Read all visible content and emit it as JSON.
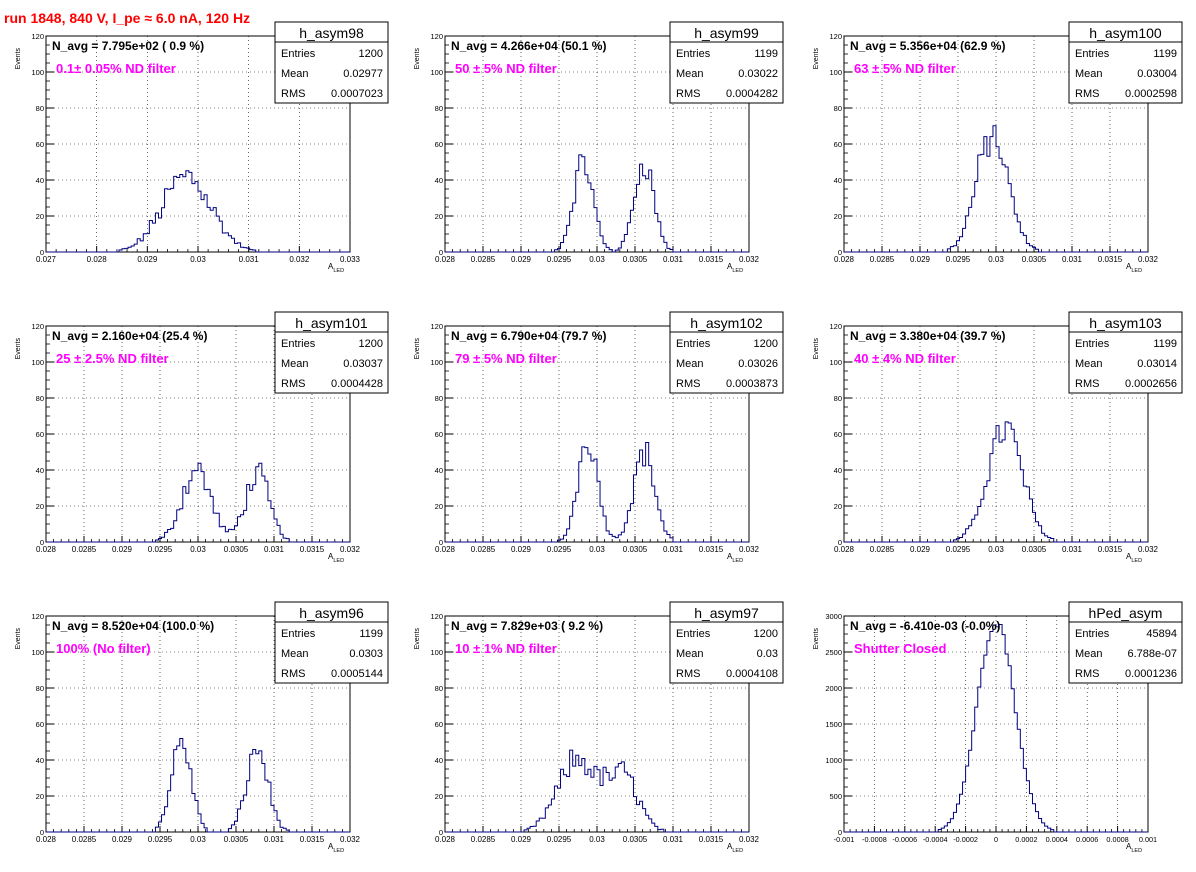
{
  "figure": {
    "title": "run 1848,   840 V, I_pe ≈ 6.0 nA, 120 Hz",
    "colors": {
      "title": "#ff0000",
      "histogram": "#000080",
      "annotation": "#ff00ff",
      "grid": "#000000",
      "frame": "#000000"
    },
    "stat_labels": {
      "entries": "Entries",
      "mean": "Mean",
      "rms": "RMS"
    },
    "grid": "dotted"
  },
  "chart_data": [
    {
      "type": "histogram",
      "name": "h_asym98",
      "navg": "N_avg = 7.795e+02 ( 0.9 %)",
      "filter": "0.1± 0.05% ND filter",
      "stats": {
        "entries": "1200",
        "mean": "0.02977",
        "rms": "0.0007023"
      },
      "ylabel": "Events",
      "xlabel": "A",
      "xlabel_sub": "LED",
      "xlim": [
        0.027,
        0.033
      ],
      "ylim": [
        0,
        120
      ],
      "xticks": [
        0.027,
        0.028,
        0.029,
        0.03,
        0.031,
        0.032,
        0.033
      ],
      "xticklabels": [
        "0.027",
        "0.028",
        "0.029",
        "0.03",
        "0.031",
        "0.032",
        "0.033"
      ],
      "yticks": [
        0,
        20,
        40,
        60,
        80,
        100,
        120
      ],
      "yticklabels": [
        "0",
        "20",
        "40",
        "60",
        "80",
        "100",
        "120"
      ],
      "peaks": [
        {
          "center": 0.02978,
          "sigma": 0.00048,
          "height": 42
        }
      ],
      "bin_width": 6e-05,
      "noise": 0.22
    },
    {
      "type": "histogram",
      "name": "h_asym99",
      "navg": "N_avg = 4.266e+04 (50.1 %)",
      "filter": "50 ± 5% ND filter",
      "stats": {
        "entries": "1199",
        "mean": "0.03022",
        "rms": "0.0004282"
      },
      "ylabel": "Events",
      "xlabel": "A",
      "xlabel_sub": "LED",
      "xlim": [
        0.028,
        0.032
      ],
      "ylim": [
        0,
        120
      ],
      "xticks": [
        0.028,
        0.0285,
        0.029,
        0.0295,
        0.03,
        0.0305,
        0.031,
        0.0315,
        0.032
      ],
      "xticklabels": [
        "0.028",
        "0.0285",
        "0.029",
        "0.0295",
        "0.03",
        "0.0305",
        "0.031",
        "0.0315",
        "0.032"
      ],
      "yticks": [
        0,
        20,
        40,
        60,
        80,
        100,
        120
      ],
      "yticklabels": [
        "0",
        "20",
        "40",
        "60",
        "80",
        "100",
        "120"
      ],
      "peaks": [
        {
          "center": 0.02982,
          "sigma": 0.00013,
          "height": 50
        },
        {
          "center": 0.03062,
          "sigma": 0.00013,
          "height": 50
        }
      ],
      "bin_width": 4e-05,
      "noise": 0.15
    },
    {
      "type": "histogram",
      "name": "h_asym100",
      "navg": "N_avg = 5.356e+04 (62.9 %)",
      "filter": "63 ± 5% ND filter",
      "stats": {
        "entries": "1199",
        "mean": "0.03004",
        "rms": "0.0002598"
      },
      "ylabel": "Events",
      "xlabel": "A",
      "xlabel_sub": "LED",
      "xlim": [
        0.028,
        0.032
      ],
      "ylim": [
        0,
        120
      ],
      "xticks": [
        0.028,
        0.0285,
        0.029,
        0.0295,
        0.03,
        0.0305,
        0.031,
        0.0315,
        0.032
      ],
      "xticklabels": [
        "0.028",
        "0.0285",
        "0.029",
        "0.0295",
        "0.03",
        "0.0305",
        "0.031",
        "0.0315",
        "0.032"
      ],
      "yticks": [
        0,
        20,
        40,
        60,
        80,
        100,
        120
      ],
      "yticklabels": [
        "0",
        "20",
        "40",
        "60",
        "80",
        "100",
        "120"
      ],
      "peaks": [
        {
          "center": 0.02995,
          "sigma": 0.00021,
          "height": 64
        }
      ],
      "bin_width": 4e-05,
      "noise": 0.15
    },
    {
      "type": "histogram",
      "name": "h_asym101",
      "navg": "N_avg = 2.160e+04 (25.4 %)",
      "filter": "25 ± 2.5% ND filter",
      "stats": {
        "entries": "1200",
        "mean": "0.03037",
        "rms": "0.0004428"
      },
      "ylabel": "Events",
      "xlabel": "A",
      "xlabel_sub": "LED",
      "xlim": [
        0.028,
        0.032
      ],
      "ylim": [
        0,
        120
      ],
      "xticks": [
        0.028,
        0.0285,
        0.029,
        0.0295,
        0.03,
        0.0305,
        0.031,
        0.0315,
        0.032
      ],
      "xticklabels": [
        "0.028",
        "0.0285",
        "0.029",
        "0.0295",
        "0.03",
        "0.0305",
        "0.031",
        "0.0315",
        "0.032"
      ],
      "yticks": [
        0,
        20,
        40,
        60,
        80,
        100,
        120
      ],
      "yticklabels": [
        "0",
        "20",
        "40",
        "60",
        "80",
        "100",
        "120"
      ],
      "peaks": [
        {
          "center": 0.02998,
          "sigma": 0.00019,
          "height": 40
        },
        {
          "center": 0.03078,
          "sigma": 0.00016,
          "height": 37
        }
      ],
      "bin_width": 4e-05,
      "noise": 0.2
    },
    {
      "type": "histogram",
      "name": "h_asym102",
      "navg": "N_avg = 6.790e+04 (79.7 %)",
      "filter": "79 ± 5% ND filter",
      "stats": {
        "entries": "1200",
        "mean": "0.03026",
        "rms": "0.0003873"
      },
      "ylabel": "Events",
      "xlabel": "A",
      "xlabel_sub": "LED",
      "xlim": [
        0.028,
        0.032
      ],
      "ylim": [
        0,
        120
      ],
      "xticks": [
        0.028,
        0.0285,
        0.029,
        0.0295,
        0.03,
        0.0305,
        0.031,
        0.0315,
        0.032
      ],
      "xticklabels": [
        "0.028",
        "0.0285",
        "0.029",
        "0.0295",
        "0.03",
        "0.0305",
        "0.031",
        "0.0315",
        "0.032"
      ],
      "yticks": [
        0,
        20,
        40,
        60,
        80,
        100,
        120
      ],
      "yticklabels": [
        "0",
        "20",
        "40",
        "60",
        "80",
        "100",
        "120"
      ],
      "peaks": [
        {
          "center": 0.02988,
          "sigma": 0.00013,
          "height": 58
        },
        {
          "center": 0.03062,
          "sigma": 0.00014,
          "height": 50
        }
      ],
      "bin_width": 4e-05,
      "noise": 0.15
    },
    {
      "type": "histogram",
      "name": "h_asym103",
      "navg": "N_avg = 3.380e+04 (39.7 %)",
      "filter": "40 ± 4% ND filter",
      "stats": {
        "entries": "1199",
        "mean": "0.03014",
        "rms": "0.0002656"
      },
      "ylabel": "Events",
      "xlabel": "A",
      "xlabel_sub": "LED",
      "xlim": [
        0.028,
        0.032
      ],
      "ylim": [
        0,
        120
      ],
      "xticks": [
        0.028,
        0.0285,
        0.029,
        0.0295,
        0.03,
        0.0305,
        0.031,
        0.0315,
        0.032
      ],
      "xticklabels": [
        "0.028",
        "0.0285",
        "0.029",
        "0.0295",
        "0.03",
        "0.0305",
        "0.031",
        "0.0315",
        "0.032"
      ],
      "yticks": [
        0,
        20,
        40,
        60,
        80,
        100,
        120
      ],
      "yticklabels": [
        "0",
        "20",
        "40",
        "60",
        "80",
        "100",
        "120"
      ],
      "peaks": [
        {
          "center": 0.03012,
          "sigma": 0.00023,
          "height": 63
        }
      ],
      "bin_width": 4e-05,
      "noise": 0.15
    },
    {
      "type": "histogram",
      "name": "h_asym96",
      "navg": "N_avg = 8.520e+04 (100.0 %)",
      "filter": "100% (No filter)",
      "stats": {
        "entries": "1199",
        "mean": "0.0303",
        "rms": "0.0005144"
      },
      "ylabel": "Events",
      "xlabel": "A",
      "xlabel_sub": "LED",
      "xlim": [
        0.028,
        0.032
      ],
      "ylim": [
        0,
        120
      ],
      "xticks": [
        0.028,
        0.0285,
        0.029,
        0.0295,
        0.03,
        0.0305,
        0.031,
        0.0315,
        0.032
      ],
      "xticklabels": [
        "0.028",
        "0.0285",
        "0.029",
        "0.0295",
        "0.03",
        "0.0305",
        "0.031",
        "0.0315",
        "0.032"
      ],
      "yticks": [
        0,
        20,
        40,
        60,
        80,
        100,
        120
      ],
      "yticklabels": [
        "0",
        "20",
        "40",
        "60",
        "80",
        "100",
        "120"
      ],
      "peaks": [
        {
          "center": 0.02978,
          "sigma": 0.00013,
          "height": 50
        },
        {
          "center": 0.03078,
          "sigma": 0.00014,
          "height": 46
        }
      ],
      "bin_width": 4e-05,
      "noise": 0.15
    },
    {
      "type": "histogram",
      "name": "h_asym97",
      "navg": "N_avg = 7.829e+03 ( 9.2 %)",
      "filter": "10 ± 1% ND filter",
      "stats": {
        "entries": "1200",
        "mean": "0.03",
        "rms": "0.0004108"
      },
      "ylabel": "Events",
      "xlabel": "A",
      "xlabel_sub": "LED",
      "xlim": [
        0.028,
        0.032
      ],
      "ylim": [
        0,
        120
      ],
      "xticks": [
        0.028,
        0.0285,
        0.029,
        0.0295,
        0.03,
        0.0305,
        0.031,
        0.0315,
        0.032
      ],
      "xticklabels": [
        "0.028",
        "0.0285",
        "0.029",
        "0.0295",
        "0.03",
        "0.0305",
        "0.031",
        "0.0315",
        "0.032"
      ],
      "yticks": [
        0,
        20,
        40,
        60,
        80,
        100,
        120
      ],
      "yticklabels": [
        "0",
        "20",
        "40",
        "60",
        "80",
        "100",
        "120"
      ],
      "peaks": [
        {
          "center": 0.02975,
          "sigma": 0.00026,
          "height": 40
        },
        {
          "center": 0.03035,
          "sigma": 0.0002,
          "height": 30
        }
      ],
      "bin_width": 4e-05,
      "noise": 0.2
    },
    {
      "type": "histogram",
      "name": "hPed_asym",
      "navg": "N_avg = -6.410e-03 (-0.0%)",
      "filter": "Shutter Closed",
      "stats": {
        "entries": "45894",
        "mean": "6.788e-07",
        "rms": "0.0001236"
      },
      "ylabel": "Events",
      "xlabel": "A",
      "xlabel_sub": "LED",
      "xlim": [
        -0.001,
        0.001
      ],
      "ylim": [
        0,
        3000
      ],
      "xticks": [
        -0.001,
        -0.0008,
        -0.0006,
        -0.0004,
        -0.0002,
        0,
        0.0002,
        0.0004,
        0.0006,
        0.0008,
        0.001
      ],
      "xticklabels": [
        "-0.001",
        "-0.0008",
        "-0.0006",
        "-0.0004",
        "-0.0002",
        "0",
        "0.0002",
        "0.0004",
        "0.0006",
        "0.0008",
        "0.001"
      ],
      "yticks": [
        0,
        500,
        1000,
        1500,
        2000,
        2500,
        3000
      ],
      "yticklabels": [
        "0",
        "500",
        "1000",
        "1500",
        "2000",
        "2500",
        "3000"
      ],
      "peaks": [
        {
          "center": 0.0,
          "sigma": 0.000124,
          "height": 2950
        }
      ],
      "bin_width": 2e-05,
      "noise": 0.03
    }
  ]
}
